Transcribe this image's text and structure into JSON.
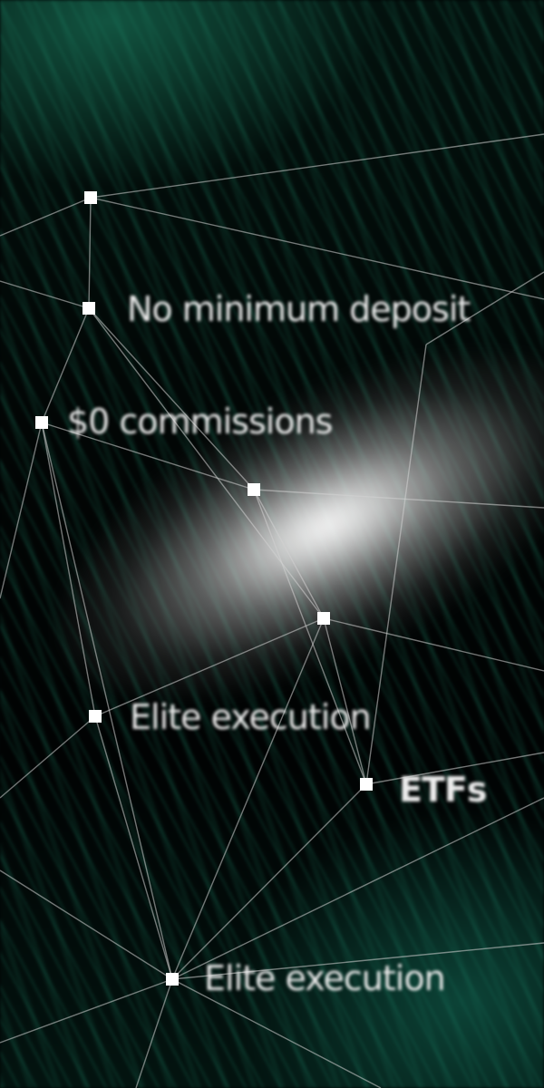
{
  "labels": {
    "no_minimum_deposit": "No minimum deposit",
    "zero_commissions": "$0 commissions",
    "elite_execution_1": "Elite execution",
    "etfs": "ETFs",
    "elite_execution_2": "Elite execution"
  },
  "colors": {
    "accent_green": "#1a785c",
    "background": "#020605",
    "text": "#ececec"
  }
}
